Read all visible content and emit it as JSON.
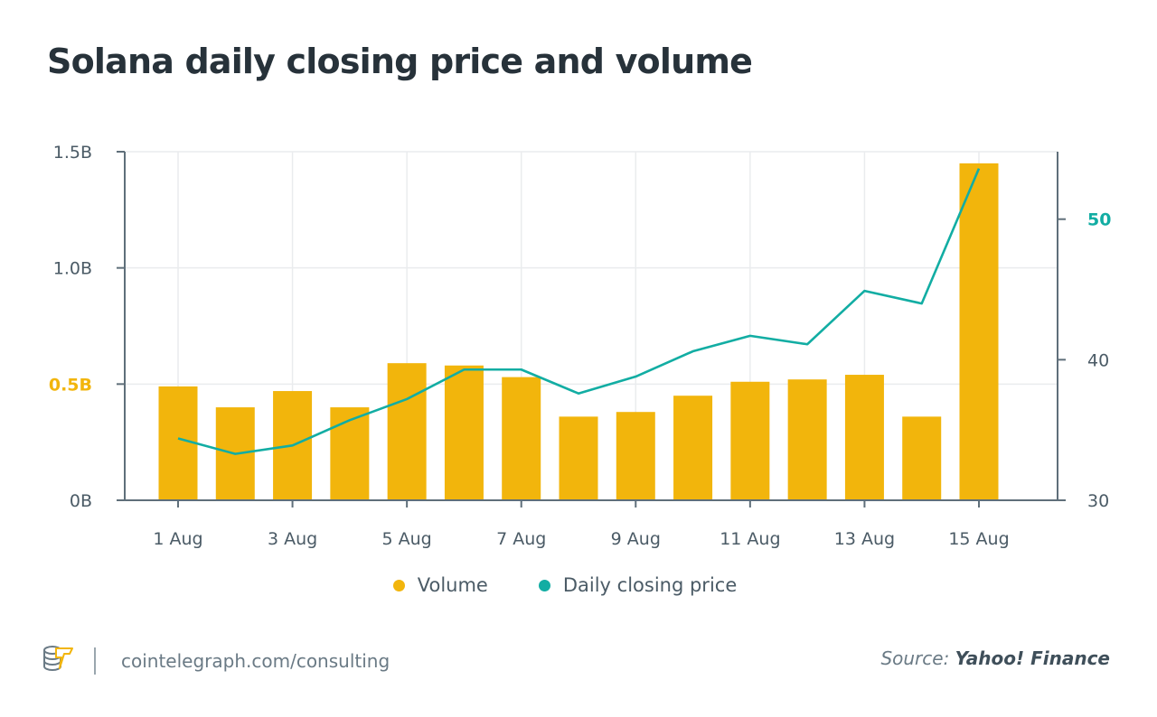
{
  "title": "Solana daily closing price and volume",
  "colors": {
    "volume": "#f2b50c",
    "price": "#12ada3",
    "axis": "#5f6f7a",
    "grid": "#eaecee",
    "text": "#4b5b66"
  },
  "legend": [
    {
      "label": "Volume",
      "color": "#f2b50c"
    },
    {
      "label": "Daily closing price",
      "color": "#12ada3"
    }
  ],
  "footer": {
    "logo": "cointelegraph-logo-icon",
    "url": "cointelegraph.com/consulting",
    "source_prefix": "Source:",
    "source_name": "Yahoo! Finance"
  },
  "chart_data": {
    "type": "bar+line",
    "title": "Solana daily closing price and volume",
    "categories": [
      "1 Aug",
      "2 Aug",
      "3 Aug",
      "4 Aug",
      "5 Aug",
      "6 Aug",
      "7 Aug",
      "8 Aug",
      "9 Aug",
      "10 Aug",
      "11 Aug",
      "12 Aug",
      "13 Aug",
      "14 Aug",
      "15 Aug"
    ],
    "x_tick_labels": [
      "1 Aug",
      "3 Aug",
      "5 Aug",
      "7 Aug",
      "9 Aug",
      "11 Aug",
      "13 Aug",
      "15 Aug"
    ],
    "series": [
      {
        "name": "Volume",
        "type": "bar",
        "axis": "left",
        "unit": "B",
        "values": [
          0.49,
          0.4,
          0.47,
          0.4,
          0.59,
          0.58,
          0.53,
          0.36,
          0.38,
          0.45,
          0.51,
          0.52,
          0.54,
          0.36,
          1.45
        ]
      },
      {
        "name": "Daily closing price",
        "type": "line",
        "axis": "right",
        "unit": "USD",
        "values": [
          34.4,
          33.3,
          33.9,
          35.7,
          37.2,
          39.3,
          39.3,
          37.6,
          38.8,
          40.6,
          41.7,
          41.1,
          44.9,
          44.0,
          53.6
        ]
      }
    ],
    "y_left": {
      "ylim": [
        0,
        1.5
      ],
      "ticks": [
        0,
        0.5,
        1.0,
        1.5
      ],
      "tick_labels": [
        "0B",
        "0.5B",
        "1.0B",
        "1.5B"
      ],
      "highlight": "0.5B"
    },
    "y_right": {
      "ylim": [
        30,
        54.8
      ],
      "ticks": [
        30,
        40,
        50
      ],
      "tick_labels": [
        "30",
        "40",
        "50"
      ],
      "highlight": "50"
    },
    "xlabel": "",
    "ylabel": "",
    "grid": true,
    "legend_position": "bottom-center"
  }
}
